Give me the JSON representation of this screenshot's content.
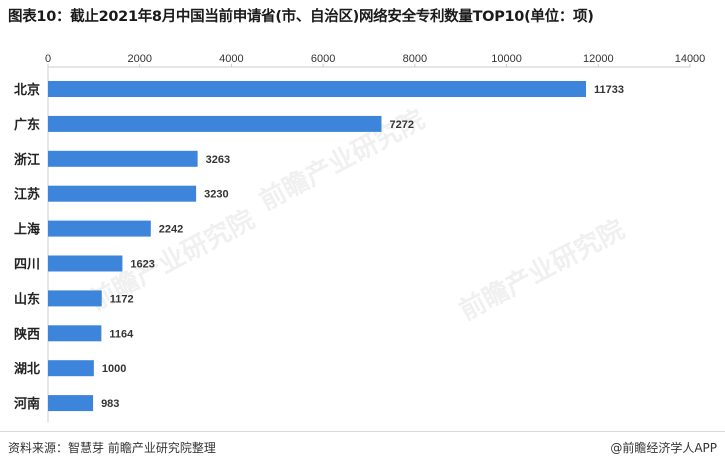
{
  "title": "图表10：截止2021年8月中国当前申请省(市、自治区)网络安全专利数量TOP10(单位：项)",
  "source": "资料来源：智慧芽 前瞻产业研究院整理",
  "brand": "@前瞻经济学人APP",
  "watermark": "前瞻产业研究院",
  "colors": {
    "bar": "#3d85db",
    "axis": "#cccccc",
    "text": "#333333"
  },
  "chart_data": {
    "type": "bar",
    "orientation": "horizontal",
    "categories": [
      "北京",
      "广东",
      "浙江",
      "江苏",
      "上海",
      "四川",
      "山东",
      "陕西",
      "湖北",
      "河南"
    ],
    "values": [
      11733,
      7272,
      3263,
      3230,
      2242,
      1623,
      1172,
      1164,
      1000,
      983
    ],
    "xticks": [
      0,
      2000,
      4000,
      6000,
      8000,
      10000,
      12000,
      14000
    ],
    "xlim": [
      0,
      14000
    ],
    "axis_position": "top",
    "grid": false,
    "legend": "none",
    "data_labels": true
  }
}
